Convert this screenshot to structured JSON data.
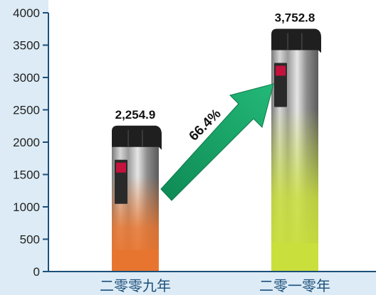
{
  "chart_data": {
    "type": "bar",
    "categories": [
      "二零零九年",
      "二零一零年"
    ],
    "values": [
      2254.9,
      3752.8
    ],
    "value_labels": [
      "2,254.9",
      "3,752.8"
    ],
    "ylim": [
      0,
      4000
    ],
    "yticks": [
      0,
      500,
      1000,
      1500,
      2000,
      2500,
      3000,
      3500,
      4000
    ],
    "ytick_labels": [
      "0",
      "500",
      "1000",
      "1500",
      "2000",
      "2500",
      "3000",
      "3500",
      "4000"
    ],
    "growth_label": "66.4%",
    "grid": false,
    "title": "",
    "xlabel": "",
    "ylabel": ""
  },
  "colors": {
    "background": "#dcebf5",
    "panel": "#ffffff",
    "axis": "#1b4f7a",
    "bar1_bottom": "#e8752f",
    "bar2_bottom": "#c9df3c",
    "arrow": "#1aa36a"
  }
}
